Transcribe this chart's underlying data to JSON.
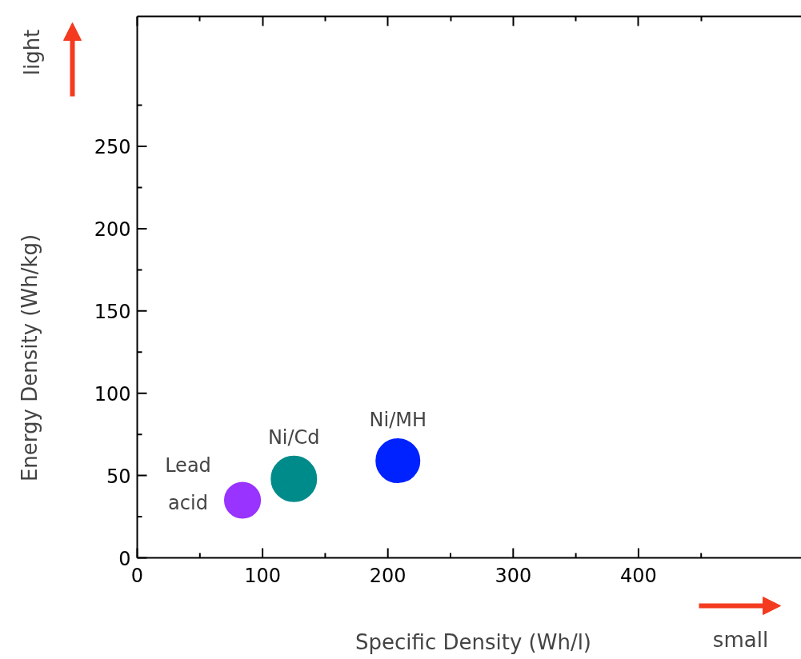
{
  "chart_data": {
    "type": "bubble",
    "xlabel": "Specific Density (Wh/l)",
    "ylabel": "Energy Density (Wh/kg)",
    "xlim": [
      0,
      530
    ],
    "ylim": [
      0,
      329
    ],
    "xticks": [
      0,
      100,
      200,
      300,
      400
    ],
    "yticks": [
      0,
      50,
      100,
      150,
      200,
      250
    ],
    "grid": false,
    "legend": false,
    "marker": "circle",
    "annotations": [
      "light",
      "small"
    ],
    "series": [
      {
        "name": "Lead\nacid",
        "color": "#9933ff",
        "x": [
          84
        ],
        "values": [
          35
        ],
        "sizes": [
          0.62
        ]
      },
      {
        "name": "Ni/Cd",
        "color": "#008b8b",
        "x": [
          125
        ],
        "values": [
          48
        ],
        "sizes": [
          1
        ]
      },
      {
        "name": "Ni/MH",
        "color": "#0022ff",
        "x": [
          208
        ],
        "values": [
          59
        ],
        "sizes": [
          0.93
        ]
      }
    ]
  }
}
